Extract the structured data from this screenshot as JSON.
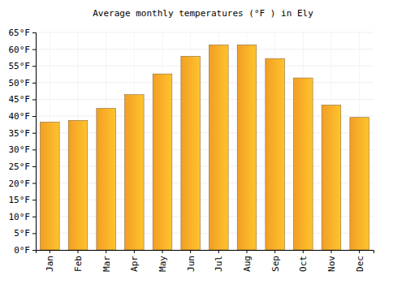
{
  "chart_data": {
    "type": "bar",
    "title": "Average monthly temperatures (°F ) in Ely",
    "categories": [
      "Jan",
      "Feb",
      "Mar",
      "Apr",
      "May",
      "Jun",
      "Jul",
      "Aug",
      "Sep",
      "Oct",
      "Nov",
      "Dec"
    ],
    "values": [
      38.2,
      38.7,
      42.3,
      46.4,
      52.6,
      57.9,
      61.3,
      61.3,
      57.2,
      51.4,
      43.3,
      39.6
    ],
    "color": "#ffa726",
    "ylim": [
      0,
      65
    ],
    "yticks": [
      {
        "value": 0,
        "label": "0°F"
      },
      {
        "value": 5,
        "label": "5°F"
      },
      {
        "value": 10,
        "label": "10°F"
      },
      {
        "value": 15,
        "label": "15°F"
      },
      {
        "value": 20,
        "label": "20°F"
      },
      {
        "value": 25,
        "label": "25°F"
      },
      {
        "value": 30,
        "label": "30°F"
      },
      {
        "value": 35,
        "label": "35°F"
      },
      {
        "value": 40,
        "label": "40°F"
      },
      {
        "value": 45,
        "label": "45°F"
      },
      {
        "value": 50,
        "label": "50°F"
      },
      {
        "value": 55,
        "label": "55°F"
      },
      {
        "value": 60,
        "label": "60°F"
      },
      {
        "value": 65,
        "label": "65°F"
      }
    ],
    "grid": true
  }
}
